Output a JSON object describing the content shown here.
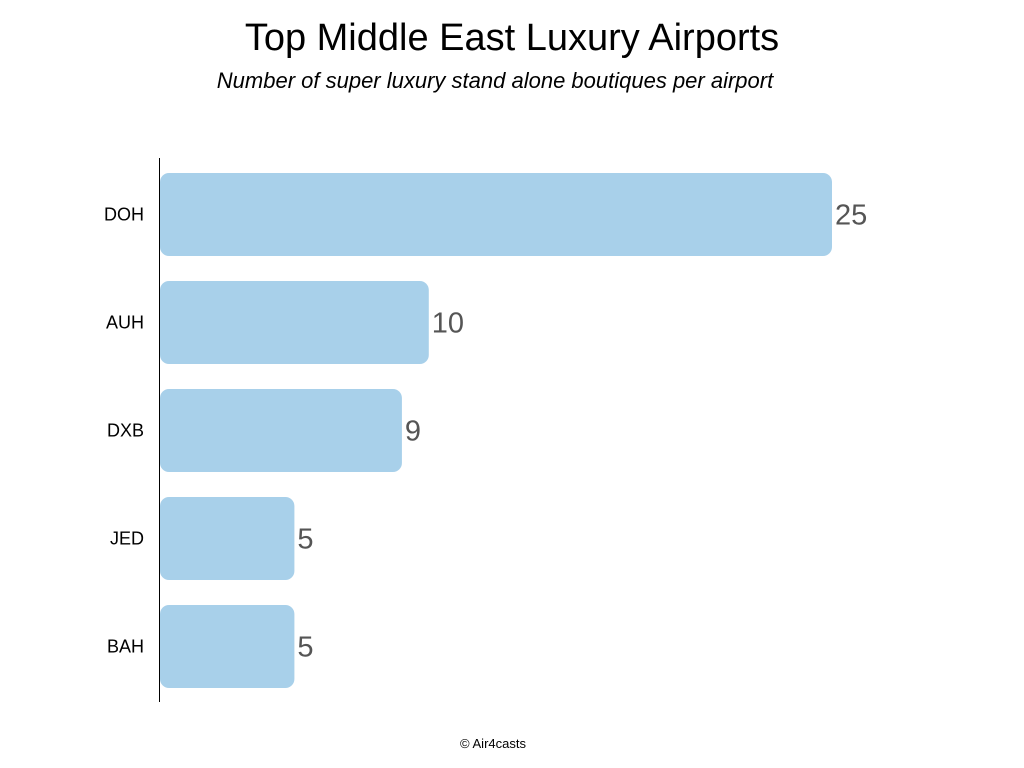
{
  "chart_data": {
    "type": "bar",
    "orientation": "horizontal",
    "title": "Top Middle East Luxury Airports",
    "subtitle": "Number of super luxury stand alone boutiques per airport",
    "categories": [
      "DOH",
      "AUH",
      "DXB",
      "JED",
      "BAH"
    ],
    "values": [
      25,
      10,
      9,
      5,
      5
    ],
    "xlabel": "",
    "ylabel": "",
    "xlim": [
      0,
      25
    ],
    "grid": false,
    "legend": "none",
    "bar_color": "#a8d0ea",
    "value_label_color": "#555555"
  },
  "footer": {
    "credit": "© Air4casts"
  }
}
